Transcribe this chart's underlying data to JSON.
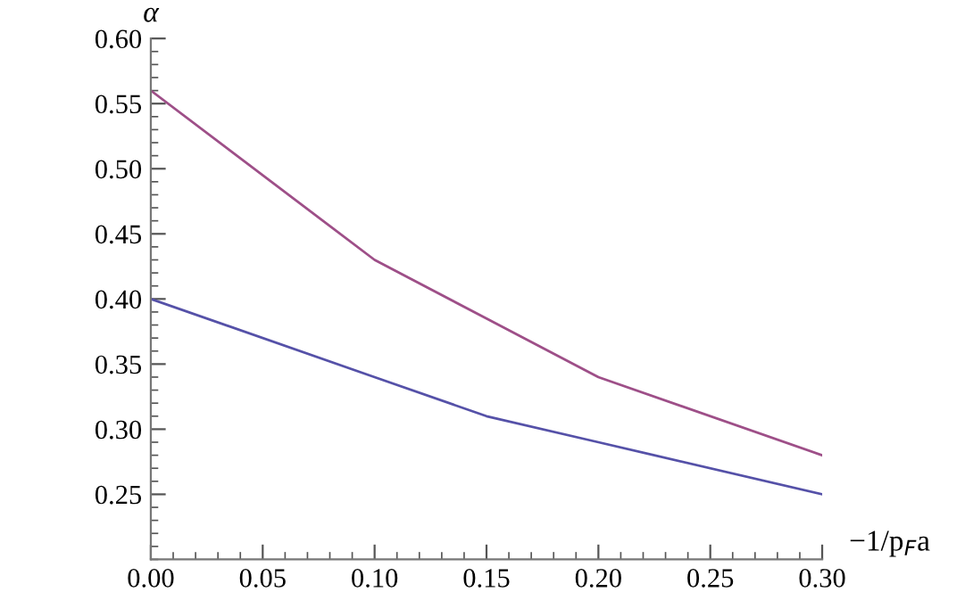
{
  "chart_data": {
    "type": "line",
    "xlabel": "−1/p$_{F}$a",
    "ylabel": "α",
    "series": [
      {
        "color": "#9e4f88",
        "x": [
          0,
          0.1,
          0.15,
          0.2,
          0.3
        ],
        "values": [
          0.56,
          0.43,
          0.385,
          0.34,
          0.28
        ]
      },
      {
        "color": "#5551a8",
        "x": [
          0,
          0.1,
          0.15,
          0.2,
          0.3
        ],
        "values": [
          0.4,
          0.34,
          0.31,
          0.29,
          0.25
        ]
      }
    ],
    "xlim": [
      0,
      0.3
    ],
    "ylim": [
      0.2,
      0.6
    ],
    "xticks": [
      {
        "value": 0,
        "label": "0.00"
      },
      {
        "value": 0.05,
        "label": "0.05"
      },
      {
        "value": 0.1,
        "label": "0.10"
      },
      {
        "value": 0.15,
        "label": "0.15"
      },
      {
        "value": 0.2,
        "label": "0.20"
      },
      {
        "value": 0.25,
        "label": "0.25"
      },
      {
        "value": 0.3,
        "label": "0.30"
      }
    ],
    "yticks": [
      {
        "value": 0.25,
        "label": "0.25"
      },
      {
        "value": 0.3,
        "label": "0.30"
      },
      {
        "value": 0.35,
        "label": "0.35"
      },
      {
        "value": 0.4,
        "label": "0.40"
      },
      {
        "value": 0.45,
        "label": "0.45"
      },
      {
        "value": 0.5,
        "label": "0.50"
      },
      {
        "value": 0.55,
        "label": "0.55"
      },
      {
        "value": 0.6,
        "label": "0.60"
      }
    ],
    "grid": false,
    "legend": false,
    "marker": "none",
    "line_style": "solid"
  }
}
